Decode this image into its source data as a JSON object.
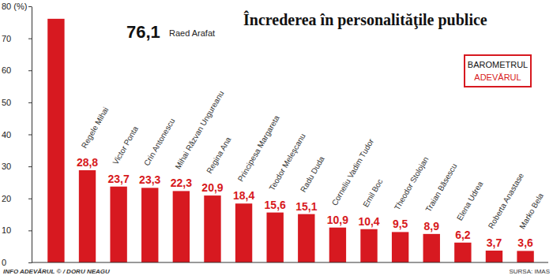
{
  "chart_data": {
    "type": "bar",
    "title": "Încrederea în personalităţile publice",
    "annotations": [
      "BAROMETRUL",
      "ADEVĂRUL"
    ],
    "credit": "INFO ADEVĂRUL © / DORU NEAGU",
    "source": "SURSA: IMAS",
    "categories": [
      "Raed Arafat",
      "Regele Mihai",
      "Victor Ponta",
      "Crin Antonescu",
      "Mihai Răzvan Ungureanu",
      "Regina Ana",
      "Principesa Margareta",
      "Teodor Meleşcanu",
      "Radu Duda",
      "Corneliu Vadim Tudor",
      "Emil Boc",
      "Theodor Stolojan",
      "Traian Băsescu",
      "Elena Udrea",
      "Roberta Anastase",
      "Marko Bela"
    ],
    "values": [
      76.1,
      28.8,
      23.7,
      23.3,
      22.3,
      20.9,
      18.4,
      15.6,
      15.1,
      10.9,
      10.4,
      9.5,
      8.9,
      6.2,
      3.7,
      3.6
    ],
    "value_labels": [
      "76,1",
      "28,8",
      "23,7",
      "23,3",
      "22,3",
      "20,9",
      "18,4",
      "15,6",
      "15,1",
      "10,9",
      "10,4",
      "9,5",
      "8,9",
      "6,2",
      "3,7",
      "3,6"
    ],
    "color": "#d71920",
    "ylim": [
      0,
      80
    ],
    "yticks": [
      0,
      10,
      20,
      30,
      40,
      50,
      60,
      70,
      {
        "value": 80,
        "label": "80 (%)"
      }
    ],
    "grid": false,
    "data_labels": true,
    "tick_labels": "y"
  }
}
